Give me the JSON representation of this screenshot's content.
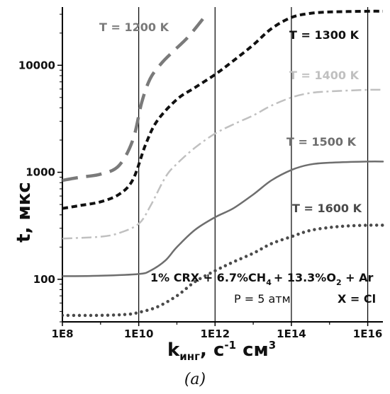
{
  "chart_data": {
    "type": "line",
    "title": "",
    "xlabel": "k",
    "xlabel_sub": "инг",
    "xlabel_rest": ", с",
    "xlabel_sup1": "-1",
    "xlabel_unit": " см",
    "xlabel_sup2": "3",
    "ylabel": "t, мкс",
    "x_scale": "log",
    "y_scale": "log",
    "xlim": [
      100000000.0,
      2.5e+16
    ],
    "ylim": [
      40,
      35000
    ],
    "x_ticks": [
      {
        "value": 100000000.0,
        "label": "1E8"
      },
      {
        "value": 10000000000.0,
        "label": "1E10"
      },
      {
        "value": 1000000000000.0,
        "label": "1E12"
      },
      {
        "value": 100000000000000.0,
        "label": "1E14"
      },
      {
        "value": 1e+16,
        "label": "1E16"
      }
    ],
    "y_ticks": [
      {
        "value": 100,
        "label": "100"
      },
      {
        "value": 1000,
        "label": "1000"
      },
      {
        "value": 10000,
        "label": "10000"
      }
    ],
    "grid": "vertical-major",
    "series": [
      {
        "name": "T = 1200 K",
        "color": "#7a7a7a",
        "style": "long-dash",
        "x": [
          100000000.0,
          300000000.0,
          1000000000.0,
          3000000000.0,
          7000000000.0,
          12000000000.0,
          20000000000.0,
          40000000000.0,
          80000000000.0,
          200000000000.0,
          600000000000.0
        ],
        "y": [
          840,
          900,
          960,
          1150,
          2000,
          4500,
          7500,
          10500,
          13500,
          18500,
          30000
        ]
      },
      {
        "name": "T = 1300 K",
        "color": "#111111",
        "style": "short-dash",
        "x": [
          100000000.0,
          300000000.0,
          1000000000.0,
          3000000000.0,
          7000000000.0,
          15000000000.0,
          30000000000.0,
          100000000000.0,
          300000000000.0,
          1000000000000.0,
          3000000000000.0,
          10000000000000.0,
          30000000000000.0,
          100000000000000.0,
          300000000000000.0,
          1000000000000000.0,
          1e+16,
          2.5e+16
        ],
        "y": [
          460,
          490,
          530,
          620,
          850,
          1800,
          3000,
          4800,
          6200,
          8200,
          11000,
          15500,
          22000,
          28000,
          30500,
          31500,
          32000,
          32000
        ]
      },
      {
        "name": "T = 1400 K",
        "color": "#c0c0c0",
        "style": "dash-dot",
        "x": [
          100000000.0,
          1000000000.0,
          3000000000.0,
          10000000000.0,
          20000000000.0,
          50000000000.0,
          100000000000.0,
          300000000000.0,
          1000000000000.0,
          3000000000000.0,
          10000000000000.0,
          30000000000000.0,
          100000000000000.0,
          300000000000000.0,
          1000000000000000.0,
          1e+16,
          2.5e+16
        ],
        "y": [
          240,
          250,
          270,
          330,
          480,
          900,
          1200,
          1700,
          2300,
          2800,
          3400,
          4200,
          5000,
          5500,
          5700,
          5900,
          5900
        ]
      },
      {
        "name": "T = 1500 K",
        "color": "#6e6e6e",
        "style": "solid",
        "x": [
          100000000.0,
          1000000000.0,
          10000000000.0,
          20000000000.0,
          50000000000.0,
          100000000000.0,
          300000000000.0,
          1000000000000.0,
          3000000000000.0,
          10000000000000.0,
          30000000000000.0,
          100000000000000.0,
          300000000000000.0,
          1000000000000000.0,
          1e+16,
          2.5e+16
        ],
        "y": [
          107,
          108,
          112,
          120,
          150,
          200,
          290,
          380,
          460,
          620,
          840,
          1050,
          1180,
          1230,
          1260,
          1260
        ]
      },
      {
        "name": "T = 1600 K",
        "color": "#4a4a4a",
        "style": "dotted",
        "x": [
          100000000.0,
          1000000000.0,
          5000000000.0,
          10000000000.0,
          30000000000.0,
          100000000000.0,
          300000000000.0,
          1000000000000.0,
          3000000000000.0,
          10000000000000.0,
          30000000000000.0,
          100000000000000.0,
          300000000000000.0,
          1000000000000000.0,
          3000000000000000.0,
          1e+16,
          2.5e+16
        ],
        "y": [
          46,
          46,
          47,
          49,
          55,
          70,
          95,
          120,
          145,
          175,
          215,
          250,
          285,
          305,
          315,
          320,
          320
        ]
      }
    ],
    "series_label_positions": "near-curve-right",
    "annotations": [
      "1% CRX + 6.7%CH",
      "4",
      "+ 13.3%O",
      "2",
      " + Ar",
      "P = 5 атм",
      "X = Cl"
    ],
    "caption": "(a)"
  }
}
